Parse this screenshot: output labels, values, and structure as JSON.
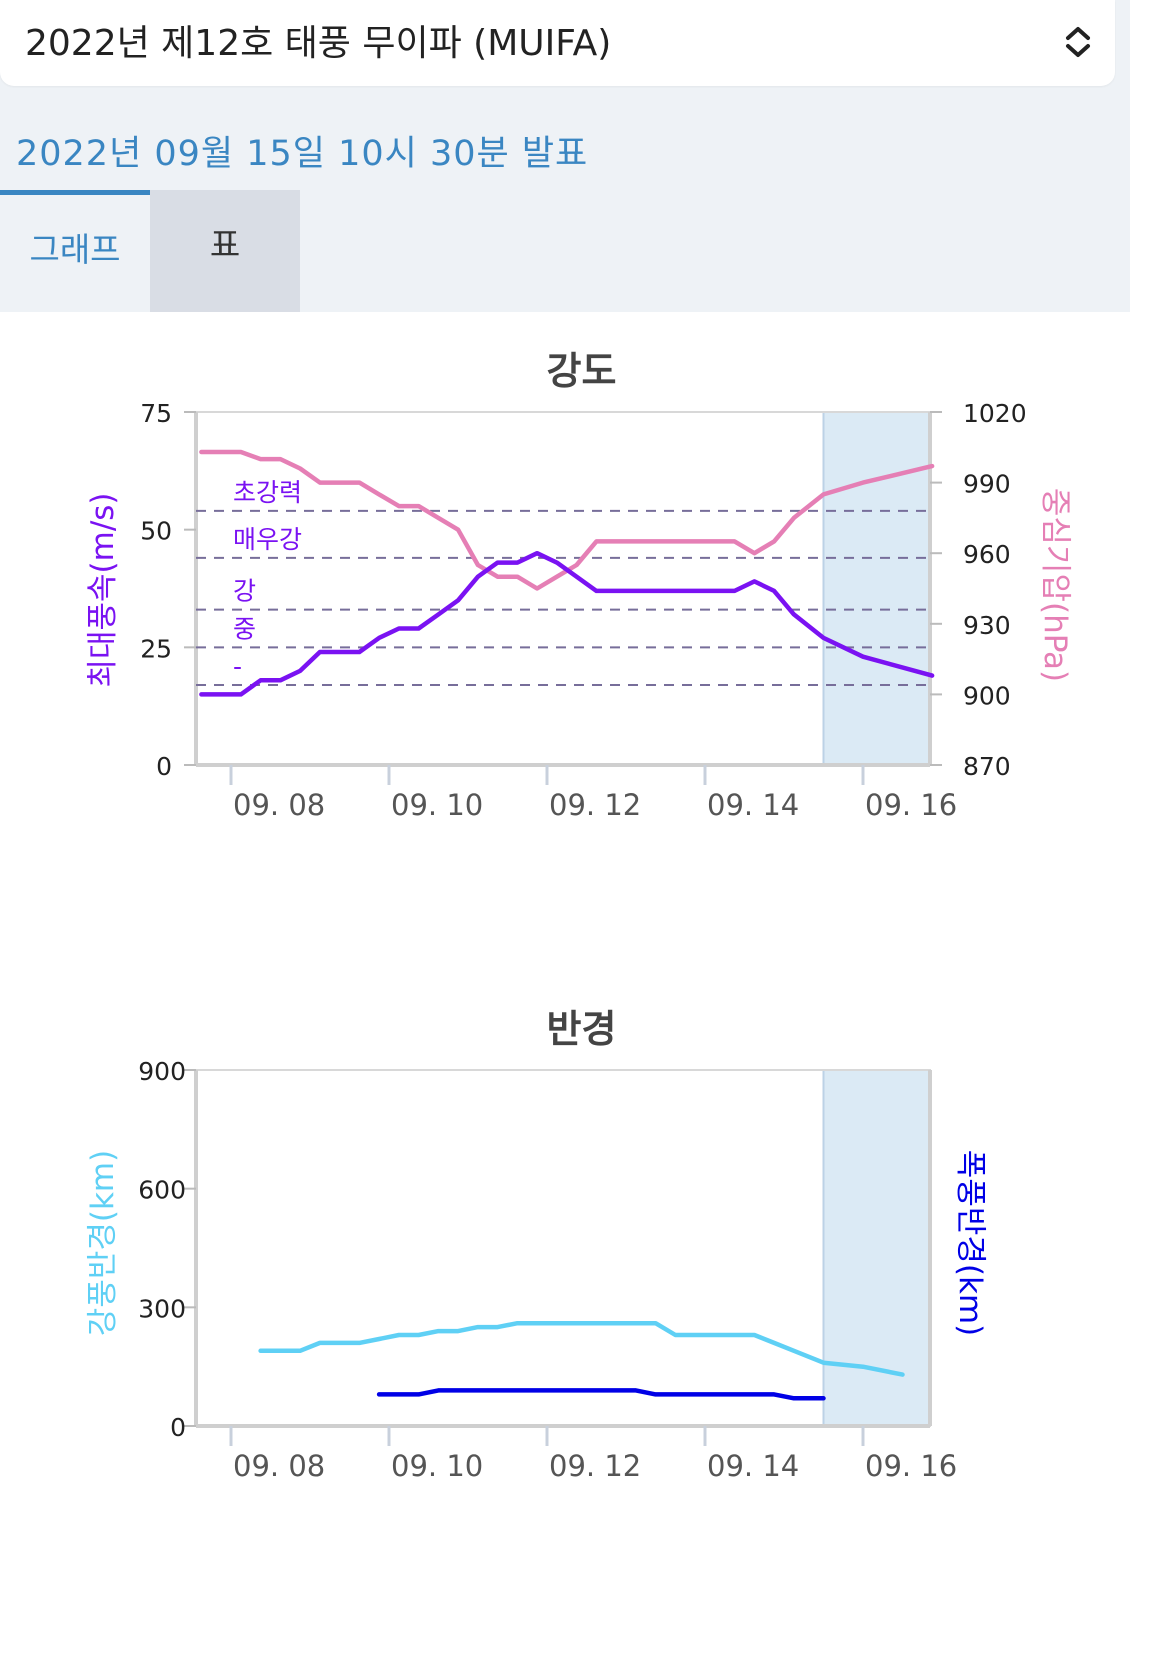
{
  "selector": {
    "label": "2022년 제12호 태풍 무이파 (MUIFA)"
  },
  "announcement": "2022년 09월 15일 10시 30분 발표",
  "tabs": [
    {
      "label": "그래프",
      "active": true
    },
    {
      "label": "표",
      "active": false
    }
  ],
  "colors": {
    "wind": "#7a12f2",
    "pressure": "#e57fb5",
    "strong_radius": "#5fd0f5",
    "storm_radius": "#0000e6",
    "forecast_band": "#dbeaf5",
    "category_line": "#776e9a",
    "accent": "#3a86c2"
  },
  "chart_data": [
    {
      "type": "line",
      "title": "강도",
      "x_ticks": [
        "09. 08",
        "09. 10",
        "09. 12",
        "09. 14",
        "09. 16"
      ],
      "x_unit": "days since 09.08 00:00 (tick 0 = 09. 08)",
      "y_left": {
        "label": "최대풍속(m/s)",
        "range": [
          0,
          75
        ],
        "ticks": [
          "0",
          "25",
          "50",
          "75"
        ]
      },
      "y_right": {
        "label": "중심기압(hPa)",
        "range": [
          870,
          1020
        ],
        "ticks": [
          "870",
          "900",
          "930",
          "960",
          "990",
          "1020"
        ]
      },
      "forecast_region": {
        "x_start": 7.5,
        "x_end": 8.9
      },
      "category_lines": [
        {
          "label": "초강력",
          "value": 54
        },
        {
          "label": "매우강",
          "value": 44
        },
        {
          "label": "강",
          "value": 33
        },
        {
          "label": "중",
          "value": 25
        },
        {
          "label": "-",
          "value": 17
        }
      ],
      "series": [
        {
          "name": "최대풍속(m/s)",
          "axis": "left",
          "x": [
            -0.375,
            0.125,
            0.375,
            0.625,
            0.875,
            1.125,
            1.375,
            1.625,
            1.875,
            2.125,
            2.375,
            2.625,
            2.875,
            3.125,
            3.375,
            3.625,
            3.875,
            4.125,
            4.375,
            4.625,
            4.875,
            5.125,
            5.375,
            5.625,
            5.875,
            6.125,
            6.375,
            6.625,
            6.875,
            7.125,
            7.5,
            8.0,
            8.875
          ],
          "values": [
            15,
            15,
            18,
            18,
            20,
            24,
            24,
            24,
            27,
            29,
            29,
            32,
            35,
            40,
            43,
            43,
            45,
            43,
            40,
            37,
            37,
            37,
            37,
            37,
            37,
            37,
            37,
            39,
            37,
            32,
            27,
            23,
            19
          ]
        },
        {
          "name": "중심기압(hPa)",
          "axis": "right",
          "x": [
            -0.375,
            0.125,
            0.375,
            0.625,
            0.875,
            1.125,
            1.375,
            1.625,
            1.875,
            2.125,
            2.375,
            2.625,
            2.875,
            3.125,
            3.375,
            3.625,
            3.875,
            4.125,
            4.375,
            4.625,
            4.875,
            5.125,
            5.375,
            5.625,
            5.875,
            6.125,
            6.375,
            6.625,
            6.875,
            7.125,
            7.5,
            8.0,
            8.875
          ],
          "values": [
            1003,
            1003,
            1000,
            1000,
            996,
            990,
            990,
            990,
            985,
            980,
            980,
            975,
            970,
            955,
            950,
            950,
            945,
            950,
            955,
            965,
            965,
            965,
            965,
            965,
            965,
            965,
            965,
            960,
            965,
            975,
            985,
            990,
            997
          ]
        }
      ]
    },
    {
      "type": "line",
      "title": "반경",
      "x_ticks": [
        "09. 08",
        "09. 10",
        "09. 12",
        "09. 14",
        "09. 16"
      ],
      "x_unit": "days since 09.08 00:00 (tick 0 = 09. 08)",
      "y_left": {
        "label": "강풍반경(km)",
        "range": [
          0,
          900
        ],
        "ticks": [
          "0",
          "300",
          "600",
          "900"
        ]
      },
      "y_right": {
        "label": "폭풍반경(km)"
      },
      "forecast_region": {
        "x_start": 7.5,
        "x_end": 8.9
      },
      "series": [
        {
          "name": "강풍반경(km)",
          "axis": "left",
          "x": [
            0.375,
            0.625,
            0.875,
            1.125,
            1.375,
            1.625,
            1.875,
            2.125,
            2.375,
            2.625,
            2.875,
            3.125,
            3.375,
            3.625,
            3.875,
            4.125,
            4.375,
            4.625,
            4.875,
            5.125,
            5.375,
            5.625,
            5.875,
            6.125,
            6.375,
            6.625,
            6.875,
            7.125,
            7.5,
            8.0,
            8.5
          ],
          "values": [
            190,
            190,
            190,
            210,
            210,
            210,
            220,
            230,
            230,
            240,
            240,
            250,
            250,
            260,
            260,
            260,
            260,
            260,
            260,
            260,
            260,
            230,
            230,
            230,
            230,
            230,
            210,
            190,
            160,
            150,
            130
          ]
        },
        {
          "name": "폭풍반경(km)",
          "axis": "left",
          "x": [
            1.875,
            2.125,
            2.375,
            2.625,
            2.875,
            3.125,
            3.375,
            3.625,
            3.875,
            4.125,
            4.375,
            4.625,
            4.875,
            5.125,
            5.375,
            5.625,
            5.875,
            6.125,
            6.375,
            6.625,
            6.875,
            7.125,
            7.5
          ],
          "values": [
            80,
            80,
            80,
            90,
            90,
            90,
            90,
            90,
            90,
            90,
            90,
            90,
            90,
            90,
            80,
            80,
            80,
            80,
            80,
            80,
            80,
            70,
            70
          ]
        }
      ]
    }
  ]
}
